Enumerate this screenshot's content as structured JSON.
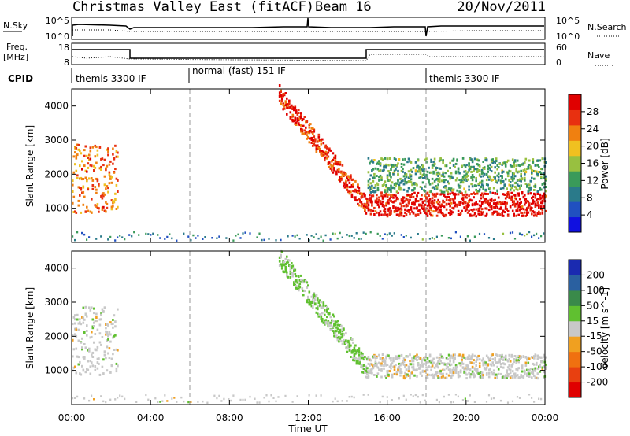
{
  "header": {
    "title": "Christmas Valley East (fitACF)",
    "beam": "Beam 16",
    "date": "20/Nov/2011"
  },
  "summary_panels": {
    "nsky_label": "N.Sky",
    "nsky_ticks": [
      "10^5",
      "10^0"
    ],
    "nsearch_label": "N.Search",
    "nsearch_ticks": [
      "10^5",
      "10^0"
    ],
    "freq_label_1": "Freq.",
    "freq_label_2": "[MHz]",
    "freq_ticks": [
      "18",
      "8"
    ],
    "nave_label": "Nave",
    "nave_ticks": [
      "60",
      "0"
    ],
    "cpid_label": "CPID",
    "cpid_segments": [
      {
        "label": "themis 3300 IF",
        "start": 0,
        "end": 6
      },
      {
        "label": "normal (fast) 151 IF",
        "start": 6,
        "end": 18
      },
      {
        "label": "themis 3300 IF",
        "start": 18,
        "end": 24
      }
    ]
  },
  "axes": {
    "y_label": "Slant Range [km]",
    "y_ticks": [
      "1000",
      "2000",
      "3000",
      "4000"
    ],
    "x_label": "Time UT",
    "x_ticks": [
      "00:00",
      "04:00",
      "08:00",
      "12:00",
      "16:00",
      "20:00",
      "00:00"
    ]
  },
  "colorbars": {
    "power": {
      "label": "Power [dB]",
      "ticks": [
        "4",
        "8",
        "12",
        "16",
        "20",
        "24",
        "28"
      ],
      "colors": [
        "#1010e0",
        "#2050c0",
        "#2a7a8a",
        "#3a9a5a",
        "#98c040",
        "#f0c020",
        "#f08010",
        "#e83010",
        "#e00000"
      ]
    },
    "velocity": {
      "label": "Velocity [m s^-1]",
      "ticks": [
        "200",
        "100",
        "50",
        "15",
        "-15",
        "-50",
        "-100",
        "-200"
      ],
      "colors": [
        "#1a2ab0",
        "#2a60a0",
        "#3a8a4a",
        "#60c030",
        "#c8c8c8",
        "#f0a020",
        "#f07010",
        "#e84010",
        "#e00000"
      ]
    }
  },
  "chart_data": [
    {
      "type": "heatmap",
      "name": "power",
      "x_range": [
        0,
        24
      ],
      "ylim": [
        0,
        4500
      ],
      "xlabel": "Time UT",
      "ylabel": "Slant Range [km]",
      "colorbar_label": "Power [dB]",
      "colorbar_range": [
        0,
        30
      ],
      "vertical_markers_hours": [
        6,
        18
      ],
      "echo_features": [
        {
          "desc": "ionospheric scatter band",
          "t_start": 0,
          "t_end": 2.3,
          "range_low_km": 900,
          "range_high_km": 2900,
          "power_db": 22
        },
        {
          "desc": "descending scatter band",
          "t_start": 10.5,
          "t_end": 15,
          "range_start_km": 4300,
          "range_end_km": 1000,
          "power_db": 26
        },
        {
          "desc": "strong near-range band",
          "t_start": 15,
          "t_end": 24,
          "range_low_km": 800,
          "range_high_km": 1500,
          "power_db": 28
        },
        {
          "desc": "weak upper layer",
          "t_start": 15,
          "t_end": 24,
          "range_low_km": 1500,
          "range_high_km": 2500,
          "power_db": 12
        }
      ]
    },
    {
      "type": "heatmap",
      "name": "velocity",
      "x_range": [
        0,
        24
      ],
      "ylim": [
        0,
        4500
      ],
      "xlabel": "Time UT",
      "ylabel": "Slant Range [km]",
      "colorbar_label": "Velocity [m s^-1]",
      "colorbar_range": [
        -250,
        250
      ],
      "vertical_markers_hours": [
        6,
        18
      ],
      "echo_features": [
        {
          "desc": "low-velocity scatter",
          "t_start": 0,
          "t_end": 2.3,
          "range_low_km": 900,
          "range_high_km": 2900,
          "velocity": 0
        },
        {
          "desc": "positive-velocity descending band",
          "t_start": 10.5,
          "t_end": 15,
          "range_start_km": 4300,
          "range_end_km": 1000,
          "velocity": 40
        },
        {
          "desc": "near-zero band",
          "t_start": 15,
          "t_end": 24,
          "range_low_km": 800,
          "range_high_km": 1500,
          "velocity": 0
        }
      ]
    }
  ]
}
